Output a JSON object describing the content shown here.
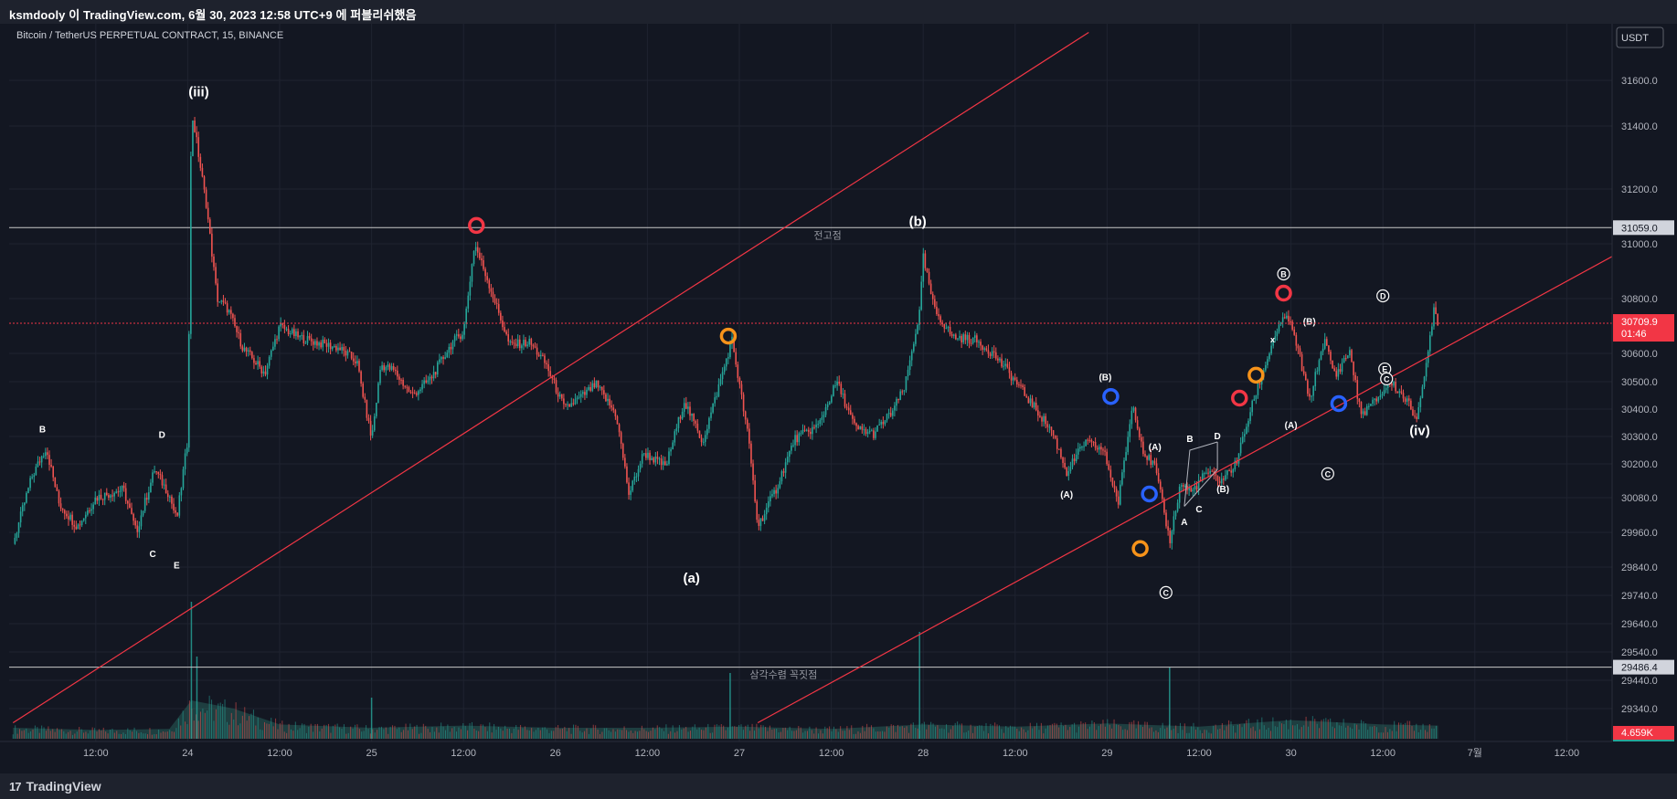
{
  "header": {
    "publisher_line": "ksmdooly 이 TradingView.com, 6월 30, 2023 12:58 UTC+9 에 퍼블리쉬했음"
  },
  "footer": {
    "brand": "TradingView",
    "brand_glyph": "17"
  },
  "chart_data": {
    "type": "candlestick",
    "symbol_line": "Bitcoin / TetherUS PERPETUAL CONTRACT, 15, BINANCE",
    "currency": "USDT",
    "ylim": [
      29280,
      31780
    ],
    "y_ticks": [
      31600.0,
      31400.0,
      31200.0,
      31000.0,
      30800.0,
      30600.0,
      30500.0,
      30400.0,
      30300.0,
      30200.0,
      30080.0,
      29960.0,
      29840.0,
      29740.0,
      29640.0,
      29540.0,
      29440.0,
      29340.0
    ],
    "x_ticks": [
      {
        "label": "12:00",
        "t": 0.0
      },
      {
        "label": "24",
        "t": 0.5
      },
      {
        "label": "12:00",
        "t": 1.0
      },
      {
        "label": "25",
        "t": 1.5
      },
      {
        "label": "12:00",
        "t": 2.0
      },
      {
        "label": "26",
        "t": 2.5
      },
      {
        "label": "12:00",
        "t": 3.0
      },
      {
        "label": "27",
        "t": 3.5
      },
      {
        "label": "12:00",
        "t": 4.0
      },
      {
        "label": "28",
        "t": 4.5
      },
      {
        "label": "12:00",
        "t": 5.0
      },
      {
        "label": "29",
        "t": 5.5
      },
      {
        "label": "12:00",
        "t": 6.0
      },
      {
        "label": "30",
        "t": 6.5
      },
      {
        "label": "12:00",
        "t": 7.0
      },
      {
        "label": "7월",
        "t": 7.5
      },
      {
        "label": "12:00",
        "t": 8.0
      }
    ],
    "horizontal_levels": [
      {
        "value": 31059.0,
        "value_label": "31059.0",
        "text": "전고점",
        "text_t": 3.98
      },
      {
        "value": 29486.4,
        "value_label": "29486.4",
        "text": "삼각수렴 꼭짓점",
        "text_t": 3.74
      }
    ],
    "last_price": {
      "value": 30709.9,
      "value_label": "30709.9",
      "countdown": "01:46"
    },
    "volume_last_label": "4.659K",
    "trendlines": [
      {
        "color": "#f23645",
        "points": [
          [
            -0.45,
            29290
          ],
          [
            5.4,
            31810
          ]
        ]
      },
      {
        "color": "#f23645",
        "points": [
          [
            3.6,
            29290
          ],
          [
            8.4,
            31010
          ]
        ]
      }
    ],
    "price_path": [
      [
        -0.45,
        29920
      ],
      [
        -0.35,
        30150
      ],
      [
        -0.27,
        30260
      ],
      [
        -0.2,
        30060
      ],
      [
        -0.1,
        29980
      ],
      [
        0.0,
        30080
      ],
      [
        0.15,
        30110
      ],
      [
        0.22,
        29960
      ],
      [
        0.32,
        30180
      ],
      [
        0.4,
        30090
      ],
      [
        0.44,
        30000
      ],
      [
        0.5,
        30290
      ],
      [
        0.52,
        31460
      ],
      [
        0.6,
        31150
      ],
      [
        0.66,
        30800
      ],
      [
        0.72,
        30760
      ],
      [
        0.8,
        30620
      ],
      [
        0.92,
        30530
      ],
      [
        1.0,
        30700
      ],
      [
        1.1,
        30660
      ],
      [
        1.2,
        30640
      ],
      [
        1.32,
        30620
      ],
      [
        1.42,
        30570
      ],
      [
        1.5,
        30290
      ],
      [
        1.55,
        30560
      ],
      [
        1.62,
        30540
      ],
      [
        1.72,
        30450
      ],
      [
        1.82,
        30510
      ],
      [
        1.94,
        30640
      ],
      [
        2.0,
        30680
      ],
      [
        2.06,
        31000
      ],
      [
        2.13,
        30870
      ],
      [
        2.25,
        30630
      ],
      [
        2.36,
        30640
      ],
      [
        2.45,
        30560
      ],
      [
        2.55,
        30400
      ],
      [
        2.65,
        30450
      ],
      [
        2.72,
        30490
      ],
      [
        2.83,
        30380
      ],
      [
        2.9,
        30090
      ],
      [
        2.98,
        30240
      ],
      [
        3.1,
        30190
      ],
      [
        3.2,
        30430
      ],
      [
        3.3,
        30280
      ],
      [
        3.46,
        30650
      ],
      [
        3.55,
        30290
      ],
      [
        3.6,
        29980
      ],
      [
        3.7,
        30110
      ],
      [
        3.8,
        30290
      ],
      [
        3.93,
        30340
      ],
      [
        4.03,
        30500
      ],
      [
        4.13,
        30330
      ],
      [
        4.23,
        30310
      ],
      [
        4.33,
        30390
      ],
      [
        4.4,
        30480
      ],
      [
        4.48,
        30750
      ],
      [
        4.5,
        30950
      ],
      [
        4.56,
        30760
      ],
      [
        4.66,
        30660
      ],
      [
        4.78,
        30650
      ],
      [
        4.88,
        30600
      ],
      [
        4.98,
        30520
      ],
      [
        5.1,
        30410
      ],
      [
        5.2,
        30320
      ],
      [
        5.28,
        30170
      ],
      [
        5.38,
        30280
      ],
      [
        5.48,
        30250
      ],
      [
        5.56,
        30060
      ],
      [
        5.64,
        30420
      ],
      [
        5.7,
        30240
      ],
      [
        5.76,
        30190
      ],
      [
        5.84,
        29930
      ],
      [
        5.9,
        30130
      ],
      [
        5.96,
        30100
      ],
      [
        6.04,
        30170
      ],
      [
        6.12,
        30140
      ],
      [
        6.2,
        30200
      ],
      [
        6.3,
        30440
      ],
      [
        6.36,
        30560
      ],
      [
        6.42,
        30680
      ],
      [
        6.48,
        30740
      ],
      [
        6.54,
        30610
      ],
      [
        6.6,
        30430
      ],
      [
        6.68,
        30650
      ],
      [
        6.74,
        30520
      ],
      [
        6.82,
        30610
      ],
      [
        6.88,
        30380
      ],
      [
        6.96,
        30430
      ],
      [
        7.04,
        30500
      ],
      [
        7.12,
        30440
      ],
      [
        7.18,
        30370
      ],
      [
        7.22,
        30480
      ],
      [
        7.28,
        30780
      ],
      [
        7.3,
        30709.9
      ]
    ],
    "volume_envelope": [
      [
        -0.45,
        0.2
      ],
      [
        0.0,
        0.16
      ],
      [
        0.4,
        0.18
      ],
      [
        0.52,
        0.7
      ],
      [
        0.75,
        0.55
      ],
      [
        1.0,
        0.26
      ],
      [
        1.5,
        0.2
      ],
      [
        2.0,
        0.24
      ],
      [
        2.5,
        0.2
      ],
      [
        3.0,
        0.2
      ],
      [
        3.5,
        0.22
      ],
      [
        4.0,
        0.18
      ],
      [
        4.5,
        0.26
      ],
      [
        5.0,
        0.22
      ],
      [
        5.5,
        0.28
      ],
      [
        6.0,
        0.22
      ],
      [
        6.5,
        0.34
      ],
      [
        7.0,
        0.26
      ],
      [
        7.3,
        0.24
      ]
    ],
    "volume_spikes": [
      [
        0.52,
        1.0
      ],
      [
        0.55,
        0.6
      ],
      [
        4.48,
        0.78
      ],
      [
        5.84,
        0.52
      ],
      [
        3.45,
        0.48
      ],
      [
        1.5,
        0.3
      ]
    ],
    "labels": [
      {
        "text": "(iii)",
        "t": 0.56,
        "v": 31530,
        "size": 15
      },
      {
        "text": "(b)",
        "t": 4.47,
        "v": 31065,
        "size": 15
      },
      {
        "text": "(a)",
        "t": 3.24,
        "v": 29785,
        "size": 15
      },
      {
        "text": "(iv)",
        "t": 7.2,
        "v": 30305,
        "size": 15
      },
      {
        "text": "B",
        "t": -0.29,
        "v": 30315,
        "size": 10
      },
      {
        "text": "D",
        "t": 0.36,
        "v": 30295,
        "size": 10
      },
      {
        "text": "C",
        "t": 0.31,
        "v": 29875,
        "size": 10
      },
      {
        "text": "E",
        "t": 0.44,
        "v": 29835,
        "size": 10
      },
      {
        "text": "(B)",
        "t": 5.49,
        "v": 30505,
        "size": 10
      },
      {
        "text": "(A)",
        "t": 5.28,
        "v": 30080,
        "size": 10
      },
      {
        "text": "(A)",
        "t": 5.76,
        "v": 30250,
        "size": 10
      },
      {
        "text": "B",
        "t": 5.95,
        "v": 30280,
        "size": 10
      },
      {
        "text": "D",
        "t": 6.1,
        "v": 30290,
        "size": 10
      },
      {
        "text": "(B)",
        "t": 6.13,
        "v": 30100,
        "size": 10
      },
      {
        "text": "C",
        "t": 6.0,
        "v": 30030,
        "size": 10
      },
      {
        "text": "A",
        "t": 5.92,
        "v": 29985,
        "size": 10
      },
      {
        "text": "(B)",
        "t": 6.6,
        "v": 30705,
        "size": 10
      },
      {
        "text": "(A)",
        "t": 6.5,
        "v": 30330,
        "size": 10
      },
      {
        "text": "x",
        "t": 6.4,
        "v": 30640,
        "size": 9
      }
    ],
    "circled_labels": [
      {
        "text": "B",
        "t": 6.46,
        "v": 30890
      },
      {
        "text": "D",
        "t": 7.0,
        "v": 30810
      },
      {
        "text": "E",
        "t": 7.01,
        "v": 30545
      },
      {
        "text": "C",
        "t": 7.02,
        "v": 30510
      },
      {
        "text": "C",
        "t": 6.7,
        "v": 30165
      },
      {
        "text": "C",
        "t": 5.82,
        "v": 29750
      }
    ],
    "rings": [
      {
        "t": 2.07,
        "v": 31067,
        "color": "#f23645"
      },
      {
        "t": 3.44,
        "v": 30663,
        "color": "#f7931a"
      },
      {
        "t": 5.52,
        "v": 30446,
        "color": "#2962ff"
      },
      {
        "t": 5.73,
        "v": 30093,
        "color": "#2962ff"
      },
      {
        "t": 5.68,
        "v": 29904,
        "color": "#f7931a"
      },
      {
        "t": 6.22,
        "v": 30440,
        "color": "#f23645"
      },
      {
        "t": 6.31,
        "v": 30523,
        "color": "#f7931a"
      },
      {
        "t": 6.46,
        "v": 30820,
        "color": "#f23645"
      },
      {
        "t": 6.76,
        "v": 30420,
        "color": "#2962ff"
      }
    ],
    "small_lines": [
      {
        "points": [
          [
            5.92,
            30050
          ],
          [
            5.95,
            30250
          ],
          [
            6.1,
            30280
          ]
        ]
      },
      {
        "points": [
          [
            5.92,
            30050
          ],
          [
            6.1,
            30180
          ],
          [
            6.1,
            30280
          ]
        ]
      }
    ],
    "colors": {
      "up": "#26a69a",
      "down": "#ef5350",
      "grid": "#1f2330",
      "axis_text": "#b2b5be",
      "level": "#c8c8c8",
      "price_badge": "#f23645",
      "volume": "#2c6e67"
    }
  }
}
